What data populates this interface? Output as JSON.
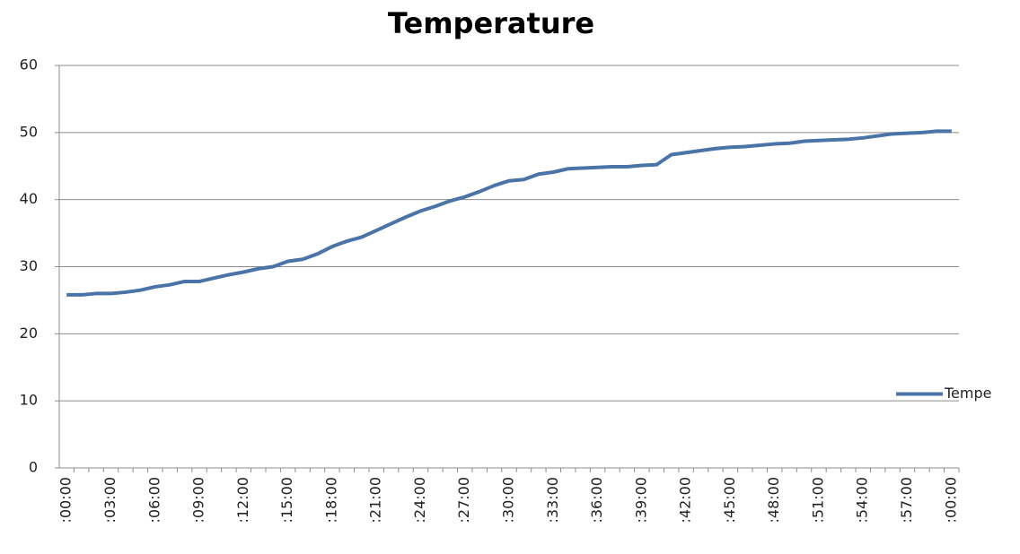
{
  "chart_data": {
    "type": "line",
    "title": "Temperature",
    "categories": [
      ":00:00",
      null,
      null,
      ":03:00",
      null,
      null,
      ":06:00",
      null,
      null,
      ":09:00",
      null,
      null,
      ":12:00",
      null,
      null,
      ":15:00",
      null,
      null,
      ":18:00",
      null,
      null,
      ":21:00",
      null,
      null,
      ":24:00",
      null,
      null,
      ":27:00",
      null,
      null,
      ":30:00",
      null,
      null,
      ":33:00",
      null,
      null,
      ":36:00",
      null,
      null,
      ":39:00",
      null,
      null,
      ":42:00",
      null,
      null,
      ":45:00",
      null,
      null,
      ":48:00",
      null,
      null,
      ":51:00",
      null,
      null,
      ":54:00",
      null,
      null,
      ":57:00",
      null,
      null,
      ":00:00"
    ],
    "series": [
      {
        "name": "Tempe",
        "color": "#4a73a8",
        "values": [
          25.8,
          25.8,
          26,
          26,
          26.2,
          26.5,
          27,
          27.3,
          27.8,
          27.8,
          28.3,
          28.8,
          29.2,
          29.7,
          30,
          30.8,
          31.1,
          31.9,
          33,
          33.8,
          34.4,
          35.4,
          36.4,
          37.4,
          38.3,
          39,
          39.8,
          40.4,
          41.2,
          42.1,
          42.8,
          43,
          43.8,
          44.1,
          44.6,
          44.7,
          44.8,
          44.9,
          44.9,
          45.1,
          45.2,
          46.7,
          47,
          47.3,
          47.6,
          47.8,
          47.9,
          48.1,
          48.3,
          48.4,
          48.7,
          48.8,
          48.9,
          49,
          49.2,
          49.5,
          49.8,
          49.9,
          50,
          50.2,
          50.2
        ]
      }
    ],
    "ylim": [
      0,
      60
    ],
    "yticks": [
      0,
      10,
      20,
      30,
      40,
      50,
      60
    ],
    "grid": true,
    "legend": "right"
  }
}
